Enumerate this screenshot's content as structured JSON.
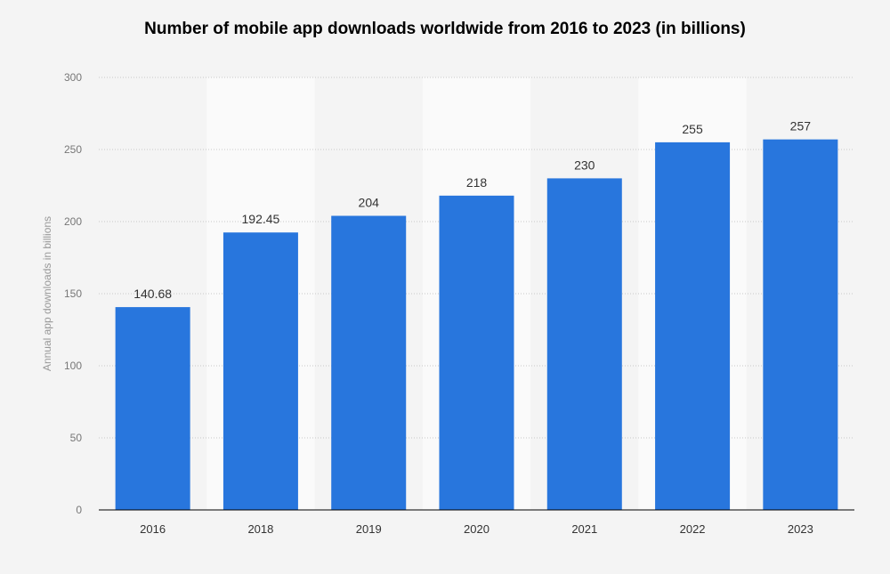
{
  "chart_data": {
    "type": "bar",
    "title": "Number of mobile app downloads worldwide from 2016 to 2023 (in billions)",
    "xlabel": "",
    "ylabel": "Annual app downloads in billions",
    "categories": [
      "2016",
      "2018",
      "2019",
      "2020",
      "2021",
      "2022",
      "2023"
    ],
    "values": [
      140.68,
      192.45,
      204,
      218,
      230,
      255,
      257
    ],
    "data_labels": [
      "140.68",
      "192.45",
      "204",
      "218",
      "230",
      "255",
      "257"
    ],
    "ylim": [
      0,
      300
    ],
    "yticks": [
      0,
      50,
      100,
      150,
      200,
      250,
      300
    ],
    "grid": true,
    "colors": {
      "bar": "#2876dd",
      "background": "#f4f4f4",
      "band": "#fafafa"
    }
  }
}
